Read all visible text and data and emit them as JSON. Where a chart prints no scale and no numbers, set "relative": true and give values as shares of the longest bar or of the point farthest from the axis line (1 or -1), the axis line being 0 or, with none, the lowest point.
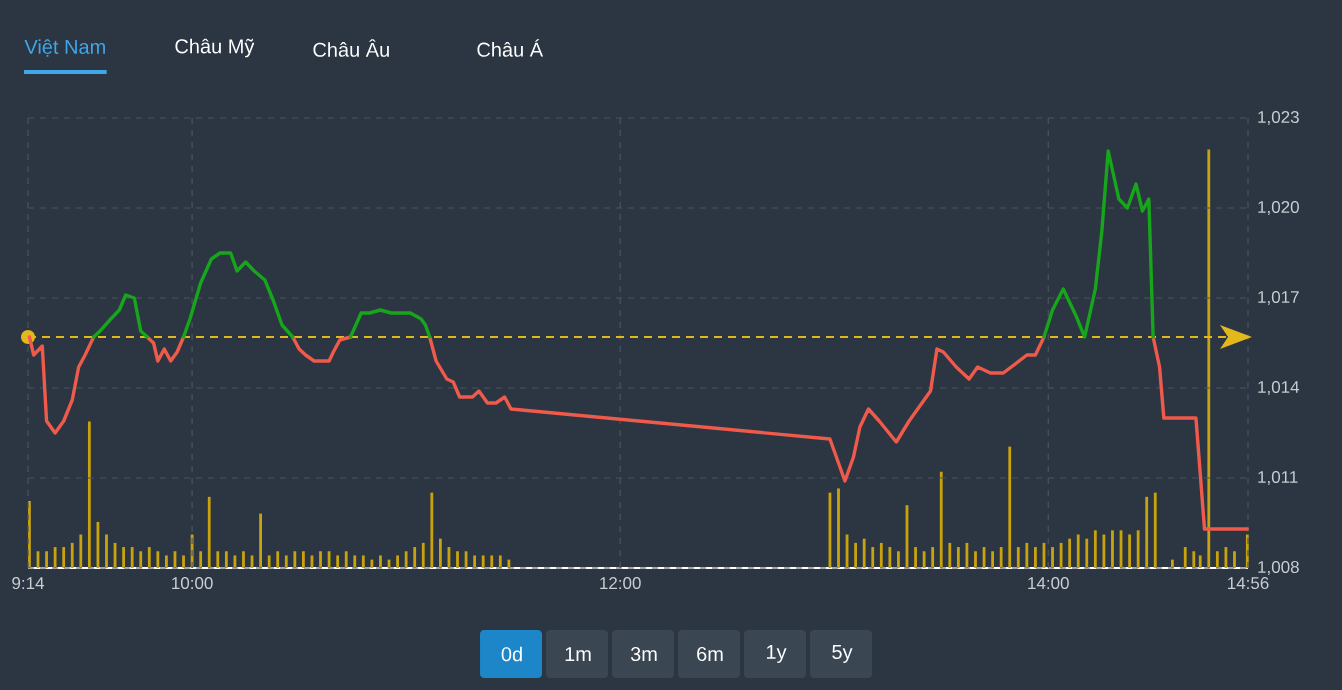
{
  "chart_data": [
    {
      "type": "line",
      "annotations": [
        "Việt Nam",
        "Châu Mỹ",
        "Châu Âu",
        "Châu Á",
        "0d",
        "1m",
        "3m",
        "6m",
        "1y",
        "5y"
      ],
      "x": [
        9.24,
        9.26,
        9.3,
        9.32,
        9.36,
        9.4,
        9.44,
        9.47,
        9.5,
        9.54,
        9.57,
        9.62,
        9.66,
        9.69,
        9.73,
        9.76,
        9.79,
        9.82,
        9.84,
        9.87,
        9.9,
        9.93,
        9.96,
        9.99,
        10.04,
        10.09,
        10.13,
        10.18,
        10.21,
        10.25,
        10.29,
        10.34,
        10.38,
        10.42,
        10.47,
        10.5,
        10.53,
        10.57,
        10.6,
        10.64,
        10.66,
        10.69,
        10.74,
        10.79,
        10.83,
        10.88,
        10.93,
        10.97,
        11.02,
        11.07,
        11.09,
        11.11,
        11.14,
        11.19,
        11.22,
        11.25,
        11.31,
        11.34,
        11.38,
        11.42,
        11.46,
        11.49,
        12.98,
        13.01,
        13.05,
        13.09,
        13.12,
        13.16,
        13.21,
        13.29,
        13.35,
        13.39,
        13.45,
        13.48,
        13.51,
        13.57,
        13.63,
        13.67,
        13.73,
        13.79,
        13.9,
        13.94,
        13.98,
        14.02,
        14.07,
        14.13,
        14.17,
        14.22,
        14.25,
        14.28,
        14.33,
        14.37,
        14.41,
        14.44,
        14.47,
        14.49,
        14.52,
        14.54,
        14.69,
        14.73,
        14.93
      ],
      "series": [
        {
          "color": "#ef5a4b",
          "values": [
            1015.7,
            1015.1,
            1015.4,
            1012.9,
            1012.5,
            1012.9,
            1013.6,
            1014.7,
            1015.1,
            1015.7,
            null,
            null,
            null,
            null,
            null,
            null,
            1015.7,
            1015.5,
            1014.9,
            1015.3,
            1014.9,
            1015.2,
            1015.7,
            null,
            null,
            null,
            null,
            null,
            null,
            null,
            null,
            null,
            null,
            null,
            1015.7,
            1015.3,
            1015.1,
            1014.9,
            1014.9,
            1014.9,
            1015.2,
            1015.6,
            1015.7,
            null,
            null,
            null,
            null,
            null,
            null,
            null,
            null,
            1015.7,
            1014.9,
            1014.3,
            1014.2,
            1013.7,
            1013.7,
            1013.9,
            1013.5,
            1013.5,
            1013.7,
            1013.3,
            1012.3,
            1011.7,
            1010.9,
            1011.7,
            1012.7,
            1013.3,
            1012.9,
            1012.2,
            1012.9,
            1013.3,
            1013.9,
            1015.3,
            1015.2,
            1014.7,
            1014.3,
            1014.7,
            1014.5,
            1014.5,
            1015.1,
            1015.1,
            1015.7,
            null,
            null,
            null,
            null,
            null,
            null,
            null,
            null,
            null,
            null,
            null,
            null,
            1015.7,
            1014.7,
            1013.0,
            1013.0,
            1009.3,
            1009.3
          ]
        },
        {
          "color": "#17a51b",
          "values": [
            null,
            null,
            null,
            null,
            null,
            null,
            null,
            null,
            null,
            1015.7,
            1015.9,
            1016.3,
            1016.6,
            1017.1,
            1017.0,
            1015.9,
            1015.7,
            null,
            null,
            null,
            null,
            null,
            1015.7,
            1016.3,
            1017.5,
            1018.3,
            1018.5,
            1018.5,
            1017.9,
            1018.2,
            1017.9,
            1017.6,
            1016.9,
            1016.1,
            1015.7,
            null,
            null,
            null,
            null,
            null,
            null,
            null,
            1015.7,
            1016.5,
            1016.5,
            1016.6,
            1016.5,
            1016.5,
            1016.5,
            1016.3,
            1016.1,
            1015.7,
            null,
            null,
            null,
            null,
            null,
            null,
            null,
            null,
            null,
            null,
            null,
            null,
            null,
            null,
            null,
            null,
            null,
            null,
            null,
            null,
            null,
            null,
            null,
            null,
            null,
            null,
            null,
            null,
            null,
            null,
            1015.7,
            1016.6,
            1017.3,
            1016.4,
            1015.7,
            1017.3,
            1019.2,
            1021.9,
            1020.3,
            1020.0,
            1020.8,
            1019.9,
            1020.3,
            1015.7,
            null,
            null,
            null,
            null,
            null
          ]
        }
      ],
      "xlim": [
        9.2333,
        14.9333
      ],
      "xticks": [
        {
          "value": 9.2333,
          "label": "9:14"
        },
        {
          "value": 10,
          "label": "10:00"
        },
        {
          "value": 12,
          "label": "12:00"
        },
        {
          "value": 14,
          "label": "14:00"
        },
        {
          "value": 14.9333,
          "label": "14:56"
        }
      ],
      "ylim": [
        1008,
        1023
      ],
      "yticks": [
        {
          "value": 1008,
          "label": "1,008"
        },
        {
          "value": 1011,
          "label": "1,011"
        },
        {
          "value": 1014,
          "label": "1,014"
        },
        {
          "value": 1017,
          "label": "1,017"
        },
        {
          "value": 1020,
          "label": "1,020"
        },
        {
          "value": 1023,
          "label": "1,023"
        }
      ],
      "grid": true,
      "ref_lines": [
        {
          "axis": "y",
          "value": 1015.7,
          "color": "#e3b81c",
          "line_style": "dashed"
        }
      ]
    },
    {
      "type": "bar",
      "relative": true,
      "tick_labels": false,
      "color": "#c9a30e",
      "xlim": [
        9.2333,
        14.9333
      ],
      "x": [
        9.24,
        9.28,
        9.32,
        9.36,
        9.4,
        9.44,
        9.48,
        9.52,
        9.56,
        9.6,
        9.64,
        9.68,
        9.72,
        9.76,
        9.8,
        9.84,
        9.88,
        9.92,
        9.96,
        10.0,
        10.04,
        10.08,
        10.12,
        10.16,
        10.2,
        10.24,
        10.28,
        10.32,
        10.36,
        10.4,
        10.44,
        10.48,
        10.52,
        10.56,
        10.6,
        10.64,
        10.68,
        10.72,
        10.76,
        10.8,
        10.84,
        10.88,
        10.92,
        10.96,
        11.0,
        11.04,
        11.08,
        11.12,
        11.16,
        11.2,
        11.24,
        11.28,
        11.32,
        11.36,
        11.4,
        11.44,
        11.48,
        12.98,
        13.02,
        13.06,
        13.1,
        13.14,
        13.18,
        13.22,
        13.26,
        13.3,
        13.34,
        13.38,
        13.42,
        13.46,
        13.5,
        13.54,
        13.58,
        13.62,
        13.66,
        13.7,
        13.74,
        13.78,
        13.82,
        13.86,
        13.9,
        13.94,
        13.98,
        14.02,
        14.06,
        14.1,
        14.14,
        14.18,
        14.22,
        14.26,
        14.3,
        14.34,
        14.38,
        14.42,
        14.46,
        14.5,
        14.58,
        14.64,
        14.68,
        14.71,
        14.75,
        14.79,
        14.83,
        14.87,
        14.93
      ],
      "values": [
        0.16,
        0.04,
        0.04,
        0.05,
        0.05,
        0.06,
        0.08,
        0.35,
        0.11,
        0.08,
        0.06,
        0.05,
        0.05,
        0.04,
        0.05,
        0.04,
        0.03,
        0.04,
        0.03,
        0.08,
        0.04,
        0.17,
        0.04,
        0.04,
        0.03,
        0.04,
        0.03,
        0.13,
        0.03,
        0.04,
        0.03,
        0.04,
        0.04,
        0.03,
        0.04,
        0.04,
        0.03,
        0.04,
        0.03,
        0.03,
        0.02,
        0.03,
        0.02,
        0.03,
        0.04,
        0.05,
        0.06,
        0.18,
        0.07,
        0.05,
        0.04,
        0.04,
        0.03,
        0.03,
        0.03,
        0.03,
        0.02,
        0.18,
        0.19,
        0.08,
        0.06,
        0.07,
        0.05,
        0.06,
        0.05,
        0.04,
        0.15,
        0.05,
        0.04,
        0.05,
        0.23,
        0.06,
        0.05,
        0.06,
        0.04,
        0.05,
        0.04,
        0.05,
        0.29,
        0.05,
        0.06,
        0.05,
        0.06,
        0.05,
        0.06,
        0.07,
        0.08,
        0.07,
        0.09,
        0.08,
        0.09,
        0.09,
        0.08,
        0.09,
        0.17,
        0.18,
        0.02,
        0.05,
        0.04,
        0.03,
        1.0,
        0.04,
        0.05,
        0.04,
        0.08
      ]
    }
  ]
}
